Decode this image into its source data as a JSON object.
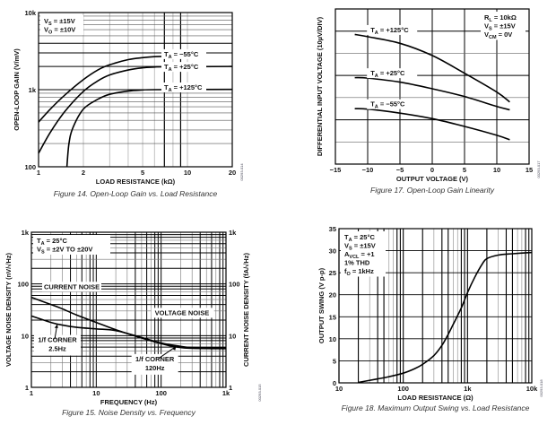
{
  "chart_data": [
    {
      "id": "fig14",
      "type": "line",
      "caption": "Figure 14. Open-Loop Gain vs. Load Resistance",
      "xlabel": "LOAD RESISTANCE (kΩ)",
      "ylabel": "OPEN-LOOP GAIN (V/mV)",
      "xscale": "log",
      "yscale": "log",
      "xlim": [
        1,
        20
      ],
      "ylim": [
        100,
        10000
      ],
      "xticks": [
        {
          "v": 1,
          "t": "1"
        },
        {
          "v": 2,
          "t": "2"
        },
        {
          "v": 5,
          "t": "5"
        },
        {
          "v": 10,
          "t": "10"
        },
        {
          "v": 20,
          "t": "20"
        }
      ],
      "yticks": [
        {
          "v": 100,
          "t": "100"
        },
        {
          "v": 1000,
          "t": "1k"
        },
        {
          "v": 10000,
          "t": "10k"
        }
      ],
      "grid": true,
      "conditions": [
        "VS = ±15V",
        "VO = ±10V"
      ],
      "code": "00293-014",
      "series": [
        {
          "name": "TA = −55°C",
          "x": [
            1,
            1.2,
            1.5,
            2,
            2.5,
            3,
            4,
            5,
            6,
            7
          ],
          "y": [
            380,
            560,
            850,
            1350,
            1800,
            2100,
            2450,
            2600,
            2680,
            2700
          ]
        },
        {
          "name": "TA = +25°C",
          "x": [
            1,
            1.2,
            1.5,
            2,
            2.5,
            3,
            4,
            5,
            6,
            7,
            20
          ],
          "y": [
            150,
            280,
            520,
            950,
            1300,
            1550,
            1800,
            1920,
            1960,
            1980,
            2000
          ]
        },
        {
          "name": "TA = +125°C",
          "x": [
            1.55,
            1.6,
            1.7,
            2,
            2.5,
            3,
            4,
            5,
            6,
            20
          ],
          "y": [
            100,
            200,
            320,
            560,
            750,
            870,
            960,
            990,
            1000,
            1010
          ]
        }
      ],
      "series_labels": [
        {
          "text": "TA = −55°C",
          "sub": "A",
          "pre": "T",
          "post": " = −55°C"
        },
        {
          "text": "TA = +25°C",
          "sub": "A",
          "pre": "T",
          "post": " = +25°C"
        },
        {
          "text": "TA = +125°C",
          "sub": "A",
          "pre": "T",
          "post": " = +125°C"
        }
      ]
    },
    {
      "id": "fig17",
      "type": "line",
      "caption": "Figure 17. Open-Loop Gain Linearity",
      "xlabel": "OUTPUT VOLTAGE (V)",
      "ylabel": "DIFFERENTIAL INPUT VOLTAGE (10µV/DIV)",
      "xlim": [
        -15,
        15
      ],
      "ylim": [
        0,
        7
      ],
      "xticks": [
        {
          "v": -15,
          "t": "−15"
        },
        {
          "v": -10,
          "t": "−10"
        },
        {
          "v": -5,
          "t": "−5"
        },
        {
          "v": 0,
          "t": "0"
        },
        {
          "v": 5,
          "t": "5"
        },
        {
          "v": 10,
          "t": "10"
        },
        {
          "v": 15,
          "t": "15"
        }
      ],
      "yticks": [],
      "grid": true,
      "conditions": [
        "RL = 10kΩ",
        "VS = ±15V",
        "VCM = 0V"
      ],
      "code": "00293-017",
      "series": [
        {
          "name": "TA = +125°C",
          "x": [
            -12,
            -10,
            -5,
            0,
            5,
            10,
            12
          ],
          "y": [
            5.85,
            5.75,
            5.45,
            4.9,
            4.1,
            3.25,
            2.8
          ]
        },
        {
          "name": "TA = +25°C",
          "x": [
            -12,
            -10,
            -5,
            0,
            5,
            10,
            12
          ],
          "y": [
            3.9,
            3.88,
            3.7,
            3.4,
            3.05,
            2.6,
            2.45
          ]
        },
        {
          "name": "TA = −55°C",
          "x": [
            -12,
            -10,
            -5,
            0,
            5,
            10,
            12
          ],
          "y": [
            2.5,
            2.48,
            2.3,
            2.05,
            1.7,
            1.3,
            1.1
          ]
        }
      ],
      "series_labels": [
        {
          "pre": "T",
          "sub": "A",
          "post": " = +125°C"
        },
        {
          "pre": "T",
          "sub": "A",
          "post": " = +25°C"
        },
        {
          "pre": "T",
          "sub": "A",
          "post": " = −55°C"
        }
      ]
    },
    {
      "id": "fig15",
      "type": "line",
      "caption": "Figure 15. Noise Density vs. Frequency",
      "xlabel": "FREQUENCY (Hz)",
      "ylabel": "VOLTAGE NOISE DENSITY (nV/√Hz)",
      "y2label": "CURRENT NOISE DENSITY (fA/√Hz)",
      "xscale": "log",
      "yscale": "log",
      "xlim": [
        1,
        1000
      ],
      "ylim": [
        1,
        1000
      ],
      "xticks": [
        {
          "v": 1,
          "t": "1"
        },
        {
          "v": 10,
          "t": "10"
        },
        {
          "v": 100,
          "t": "100"
        },
        {
          "v": 1000,
          "t": "1k"
        }
      ],
      "yticks": [
        {
          "v": 1,
          "t": "1"
        },
        {
          "v": 10,
          "t": "10"
        },
        {
          "v": 100,
          "t": "100"
        },
        {
          "v": 1000,
          "t": "1k"
        }
      ],
      "y2ticks": [
        {
          "v": 1,
          "t": "1"
        },
        {
          "v": 10,
          "t": "10"
        },
        {
          "v": 100,
          "t": "100"
        },
        {
          "v": 1000,
          "t": "1k"
        }
      ],
      "grid": true,
      "conditions": [
        "TA = 25°C",
        "VS = ±2V TO ±20V"
      ],
      "code": "00293-015",
      "series": [
        {
          "name": "CURRENT NOISE",
          "x": [
            1,
            2,
            3,
            5,
            10,
            20,
            50,
            100,
            150,
            200,
            300,
            1000
          ],
          "y": [
            55,
            40,
            33,
            25,
            18,
            13,
            9,
            7,
            6.2,
            5.9,
            5.7,
            5.6
          ]
        },
        {
          "name": "VOLTAGE NOISE",
          "x": [
            1,
            2,
            3,
            5,
            10,
            20,
            50,
            100,
            200,
            300,
            1000
          ],
          "y": [
            24,
            18,
            16,
            14.5,
            13.5,
            12.5,
            9.2,
            7.2,
            6.2,
            5.9,
            5.8
          ]
        }
      ],
      "annotations": [
        {
          "text": "1/f CORNER",
          "sub": "2.5Hz",
          "x": 2.5
        },
        {
          "text": "1/f CORNER",
          "sub": "120Hz",
          "x": 170
        }
      ],
      "series_label_text": [
        "CURRENT NOISE",
        "VOLTAGE NOISE"
      ],
      "annotation_text": [
        [
          "1/f CORNER",
          "2.5Hz"
        ],
        [
          "1/f CORNER",
          "120Hz"
        ]
      ]
    },
    {
      "id": "fig18",
      "type": "line",
      "caption": "Figure 18. Maximum Output Swing vs. Load Resistance",
      "xlabel": "LOAD RESISTANCE (Ω)",
      "ylabel": "OUTPUT SWING (V p-p)",
      "xscale": "log",
      "xlim": [
        10,
        10000
      ],
      "ylim": [
        0,
        35
      ],
      "xticks": [
        {
          "v": 10,
          "t": "10"
        },
        {
          "v": 100,
          "t": "100"
        },
        {
          "v": 1000,
          "t": "1k"
        },
        {
          "v": 10000,
          "t": "10k"
        }
      ],
      "yticks": [
        {
          "v": 0,
          "t": "0"
        },
        {
          "v": 5,
          "t": "5"
        },
        {
          "v": 10,
          "t": "10"
        },
        {
          "v": 15,
          "t": "15"
        },
        {
          "v": 20,
          "t": "20"
        },
        {
          "v": 25,
          "t": "25"
        },
        {
          "v": 30,
          "t": "30"
        },
        {
          "v": 35,
          "t": "35"
        }
      ],
      "grid": true,
      "conditions": [
        "TA = 25°C",
        "VS = ±15V",
        "AVCL = +1",
        "1% THD",
        "fO = 1kHz"
      ],
      "code": "00293-018",
      "series": [
        {
          "name": "Output Swing",
          "x": [
            20,
            40,
            60,
            100,
            150,
            200,
            300,
            400,
            500,
            600,
            800,
            1000,
            1300,
            1700,
            2000,
            3000,
            5000,
            10000
          ],
          "y": [
            0.1,
            0.9,
            1.4,
            2.2,
            3.2,
            4.2,
            6.2,
            8.5,
            11,
            13.3,
            17,
            20.5,
            24,
            27,
            28.2,
            29,
            29.3,
            29.6
          ]
        }
      ]
    }
  ]
}
